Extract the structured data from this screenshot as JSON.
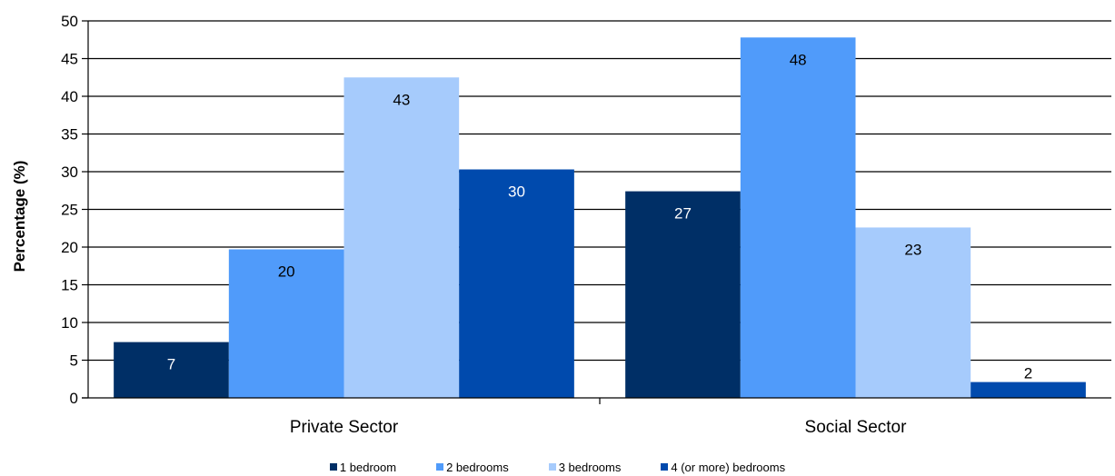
{
  "chart_data": {
    "type": "bar",
    "title": "",
    "xlabel": "",
    "ylabel": "Percentage (%)",
    "ylim": [
      0,
      50
    ],
    "ytick_step": 5,
    "grid": true,
    "legend_position": "bottom",
    "categories": [
      "Private Sector",
      "Social Sector"
    ],
    "series": [
      {
        "name": "1 bedroom",
        "color": "#002F66",
        "values": [
          7.4,
          27.4
        ],
        "labels": [
          "7",
          "27"
        ]
      },
      {
        "name": "2 bedrooms",
        "color": "#509BFA",
        "values": [
          19.7,
          47.8
        ],
        "labels": [
          "20",
          "48"
        ]
      },
      {
        "name": "3 bedrooms",
        "color": "#A6CBFC",
        "values": [
          42.5,
          22.6
        ],
        "labels": [
          "43",
          "23"
        ]
      },
      {
        "name": "4 (or more) bedrooms",
        "color": "#004AAD",
        "values": [
          30.3,
          2.1
        ],
        "labels": [
          "30",
          "2"
        ]
      }
    ]
  }
}
